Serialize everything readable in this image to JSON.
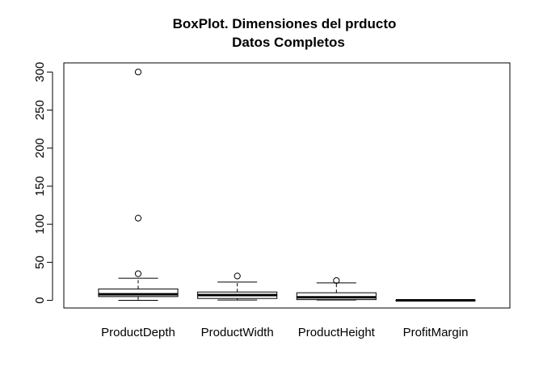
{
  "chart_data": {
    "type": "boxplot",
    "title": "BoxPlot. Dimensiones del prducto",
    "subtitle": "Datos Completos",
    "xlabel": "",
    "ylabel": "",
    "ylim": [
      -10,
      312
    ],
    "y_ticks": [
      0,
      50,
      100,
      150,
      200,
      250,
      300
    ],
    "grid": false,
    "legend": "none",
    "categories": [
      "ProductDepth",
      "ProductWidth",
      "ProductHeight",
      "ProfitMargin"
    ],
    "boxes": [
      {
        "category": "ProductDepth",
        "whisker_low": 0,
        "q1": 5,
        "median": 8,
        "q3": 15,
        "whisker_high": 29,
        "outliers": [
          35,
          108,
          300
        ]
      },
      {
        "category": "ProductWidth",
        "whisker_low": 0.5,
        "q1": 2.5,
        "median": 7,
        "q3": 11,
        "whisker_high": 24,
        "outliers": [
          32
        ]
      },
      {
        "category": "ProductHeight",
        "whisker_low": 0.5,
        "q1": 1,
        "median": 4,
        "q3": 10,
        "whisker_high": 23,
        "outliers": [
          26
        ]
      },
      {
        "category": "ProfitMargin",
        "whisker_low": 0,
        "q1": 0,
        "median": 0.1,
        "q3": 0.2,
        "whisker_high": 0.5,
        "outliers": []
      }
    ],
    "colors": {
      "stroke": "#000000",
      "box_fill": "#ffffff",
      "background": "#ffffff"
    }
  }
}
